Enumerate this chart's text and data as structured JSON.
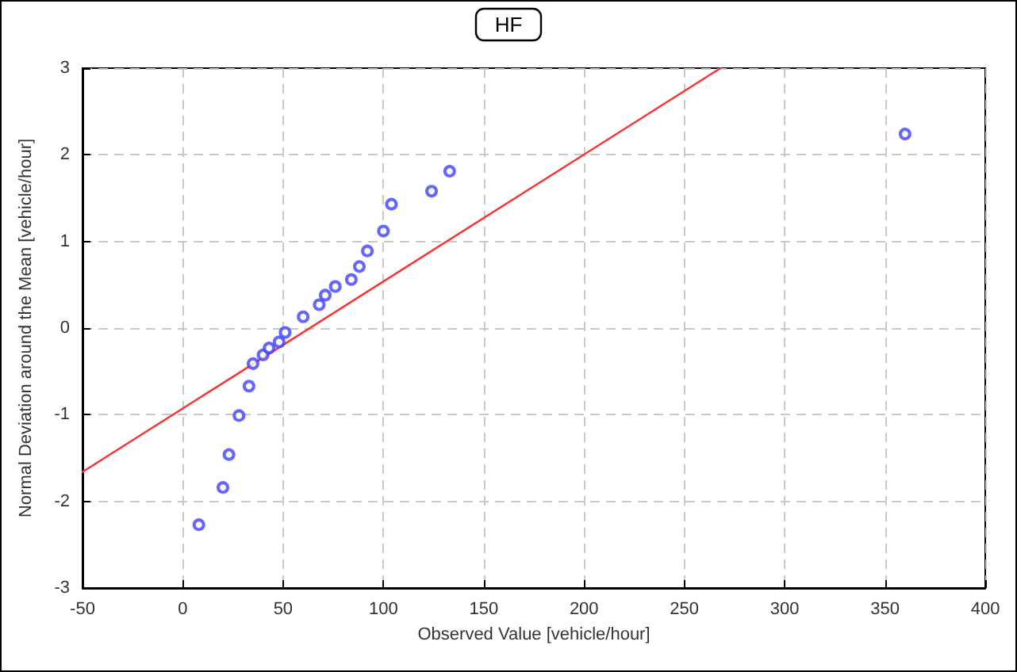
{
  "chart_data": {
    "type": "scatter",
    "title": "HF",
    "xlabel": "Observed Value [vehicle/hour]",
    "ylabel": "Normal Deviation around the Mean [vehicle/hour]",
    "series": [
      {
        "color": "#4040ff",
        "marker": "circle",
        "x": [
          8,
          20,
          23,
          28,
          33,
          35,
          40,
          43,
          48,
          51,
          60,
          68,
          71,
          76,
          84,
          88,
          92,
          100,
          104,
          124,
          133,
          360
        ],
        "values": [
          -2.27,
          -1.84,
          -1.46,
          -1.01,
          -0.67,
          -0.41,
          -0.31,
          -0.23,
          -0.16,
          -0.05,
          0.13,
          0.27,
          0.38,
          0.48,
          0.56,
          0.71,
          0.89,
          1.12,
          1.43,
          1.58,
          1.81,
          2.24
        ]
      },
      {
        "type": "line",
        "color": "#ff3030",
        "marker": "none",
        "line_style": "solid",
        "x": [
          -50,
          268
        ],
        "values": [
          -1.66,
          3
        ]
      }
    ],
    "xlim": [
      -50,
      400
    ],
    "xticks": [
      -50,
      0,
      50,
      100,
      150,
      200,
      250,
      300,
      350,
      400
    ],
    "ylim": [
      -3,
      3
    ],
    "yticks": [
      -3,
      -2,
      -1,
      0,
      1,
      2,
      3
    ],
    "grid": true
  }
}
